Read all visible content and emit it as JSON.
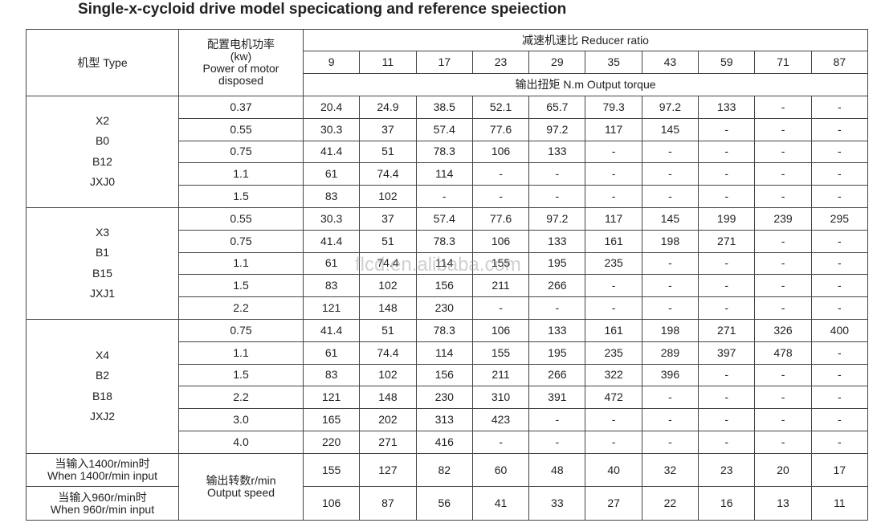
{
  "title": "Single-x-cycloid drive model specicationg and reference speiection",
  "table": {
    "type_header": "机型 Type",
    "power_header": [
      "配置电机功率",
      "(kw)",
      "Power of motor",
      "disposed"
    ],
    "ratio_header": "减速机速比 Reducer ratio",
    "ratios": [
      "9",
      "11",
      "17",
      "23",
      "29",
      "35",
      "43",
      "59",
      "71",
      "87"
    ],
    "torque_header": "输出扭矩 N.m Output torque",
    "groups": [
      {
        "models": [
          "X2",
          "B0",
          "B12",
          "JXJ0"
        ],
        "rows": [
          [
            "0.37",
            "20.4",
            "24.9",
            "38.5",
            "52.1",
            "65.7",
            "79.3",
            "97.2",
            "133",
            "-",
            "-"
          ],
          [
            "0.55",
            "30.3",
            "37",
            "57.4",
            "77.6",
            "97.2",
            "117",
            "145",
            "-",
            "-",
            "-"
          ],
          [
            "0.75",
            "41.4",
            "51",
            "78.3",
            "106",
            "133",
            "-",
            "-",
            "-",
            "-",
            "-"
          ],
          [
            "1.1",
            "61",
            "74.4",
            "114",
            "-",
            "-",
            "-",
            "-",
            "-",
            "-",
            "-"
          ],
          [
            "1.5",
            "83",
            "102",
            "-",
            "-",
            "-",
            "-",
            "-",
            "-",
            "-",
            "-"
          ]
        ]
      },
      {
        "models": [
          "X3",
          "B1",
          "B15",
          "JXJ1"
        ],
        "rows": [
          [
            "0.55",
            "30.3",
            "37",
            "57.4",
            "77.6",
            "97.2",
            "117",
            "145",
            "199",
            "239",
            "295"
          ],
          [
            "0.75",
            "41.4",
            "51",
            "78.3",
            "106",
            "133",
            "161",
            "198",
            "271",
            "-",
            "-"
          ],
          [
            "1.1",
            "61",
            "74.4",
            "114",
            "155",
            "195",
            "235",
            "-",
            "-",
            "-",
            "-"
          ],
          [
            "1.5",
            "83",
            "102",
            "156",
            "211",
            "266",
            "-",
            "-",
            "-",
            "-",
            "-"
          ],
          [
            "2.2",
            "121",
            "148",
            "230",
            "-",
            "-",
            "-",
            "-",
            "-",
            "-",
            "-"
          ]
        ]
      },
      {
        "models": [
          "X4",
          "B2",
          "B18",
          "JXJ2"
        ],
        "rows": [
          [
            "0.75",
            "41.4",
            "51",
            "78.3",
            "106",
            "133",
            "161",
            "198",
            "271",
            "326",
            "400"
          ],
          [
            "1.1",
            "61",
            "74.4",
            "114",
            "155",
            "195",
            "235",
            "289",
            "397",
            "478",
            "-"
          ],
          [
            "1.5",
            "83",
            "102",
            "156",
            "211",
            "266",
            "322",
            "396",
            "-",
            "-",
            "-"
          ],
          [
            "2.2",
            "121",
            "148",
            "230",
            "310",
            "391",
            "472",
            "-",
            "-",
            "-",
            "-"
          ],
          [
            "3.0",
            "165",
            "202",
            "313",
            "423",
            "-",
            "-",
            "-",
            "-",
            "-",
            "-"
          ],
          [
            "4.0",
            "220",
            "271",
            "416",
            "-",
            "-",
            "-",
            "-",
            "-",
            "-",
            "-"
          ]
        ]
      }
    ],
    "speed_header": [
      "输出转数r/min",
      "Output speed"
    ],
    "speed_rows": [
      {
        "label": [
          "当输入1400r/min时",
          "When 1400r/min input"
        ],
        "values": [
          "155",
          "127",
          "82",
          "60",
          "48",
          "40",
          "32",
          "23",
          "20",
          "17"
        ]
      },
      {
        "label": [
          "当输入960r/min时",
          "When 960r/min input"
        ],
        "values": [
          "106",
          "87",
          "56",
          "41",
          "33",
          "27",
          "22",
          "16",
          "13",
          "11"
        ]
      }
    ]
  },
  "watermark": "flcd.en.alibaba.com"
}
